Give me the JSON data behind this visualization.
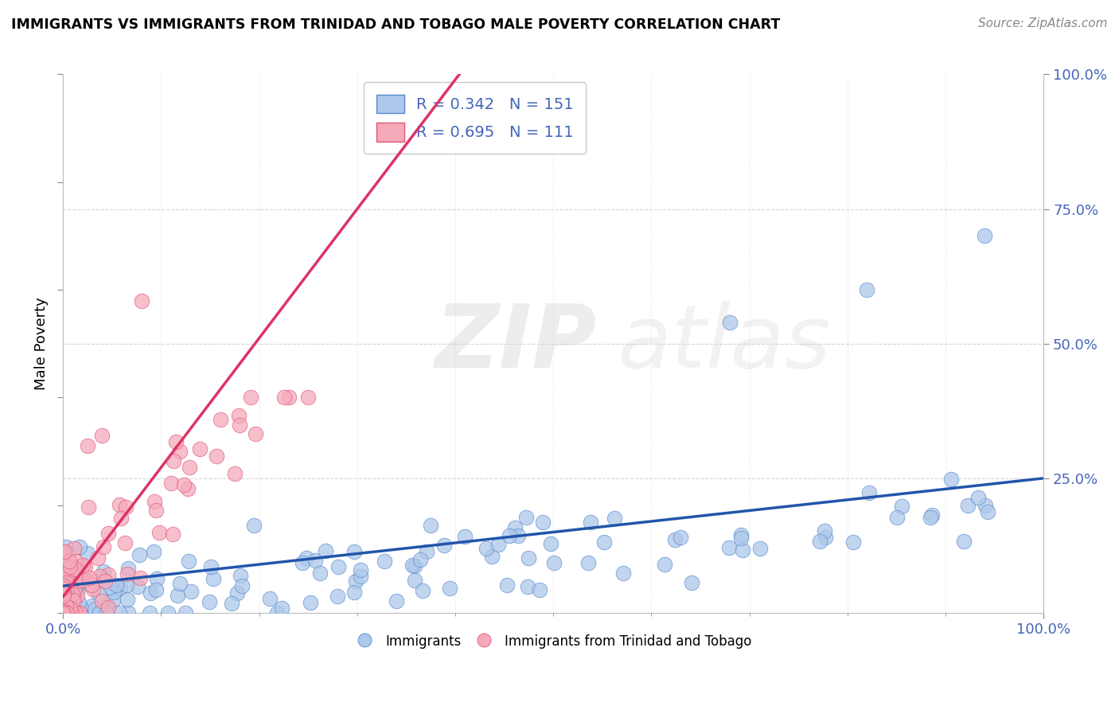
{
  "title": "IMMIGRANTS VS IMMIGRANTS FROM TRINIDAD AND TOBAGO MALE POVERTY CORRELATION CHART",
  "source": "Source: ZipAtlas.com",
  "ylabel": "Male Poverty",
  "xlim": [
    0,
    1.0
  ],
  "ylim": [
    0,
    1.0
  ],
  "blue_R": 0.342,
  "blue_N": 151,
  "pink_R": 0.695,
  "pink_N": 111,
  "blue_color": "#adc8ea",
  "pink_color": "#f5aaba",
  "blue_edge_color": "#5588cc",
  "pink_edge_color": "#e05578",
  "blue_line_color": "#2255aa",
  "pink_line_color": "#dd3366",
  "legend_label_blue": "Immigrants",
  "legend_label_pink": "Immigrants from Trinidad and Tobago",
  "background_color": "#ffffff",
  "grid_color": "#cccccc",
  "tick_color": "#4466bb",
  "title_color": "#000000",
  "source_color": "#888888"
}
